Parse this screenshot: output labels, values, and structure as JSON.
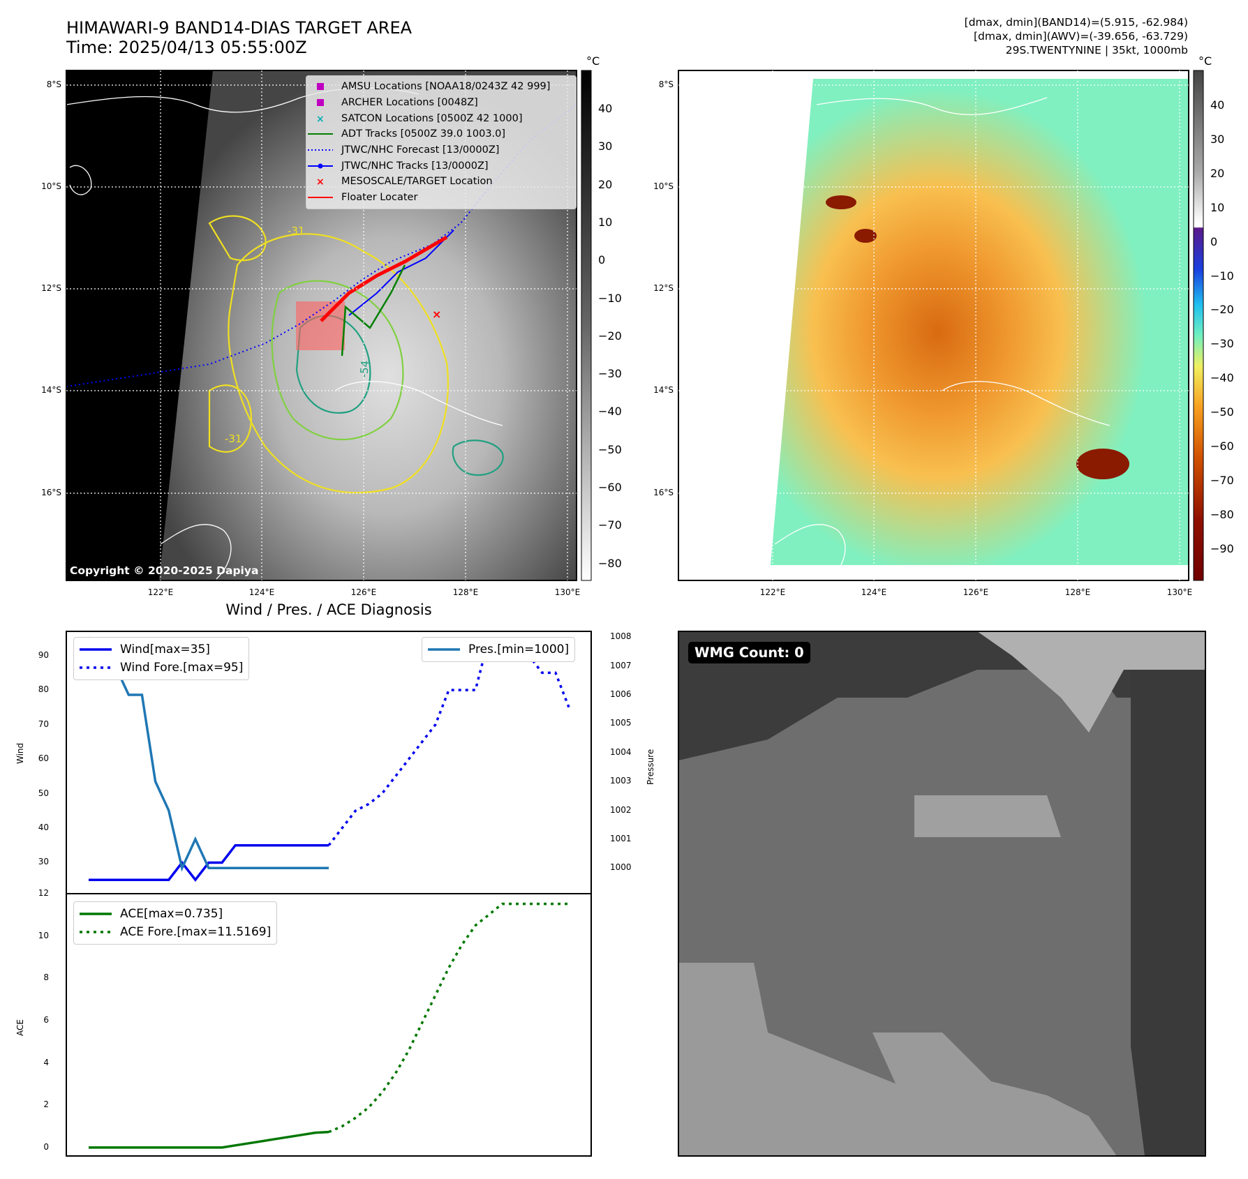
{
  "header": {
    "title_line1": "HIMAWARI-9 BAND14-DIAS TARGET AREA",
    "title_line2": "Time: 2025/04/13 05:55:00Z",
    "stats_line1": "[dmax, dmin](BAND14)=(5.915, -62.984)",
    "stats_line2": "[dmax, dmin](AWV)=(-39.656, -63.729)",
    "stats_line3": "29S.TWENTYNINE | 35kt, 1000mb"
  },
  "map_axes": {
    "lat_labels": [
      "8°S",
      "10°S",
      "12°S",
      "14°S",
      "16°S"
    ],
    "lon_labels": [
      "122°E",
      "124°E",
      "126°E",
      "128°E",
      "130°E"
    ]
  },
  "map_legend": [
    {
      "label": "AMSU Locations [NOAA18/0243Z 42 999]",
      "color": "#c000c0",
      "icon": "square-marker"
    },
    {
      "label": "ARCHER Locations [0048Z]",
      "color": "#c000c0",
      "icon": "square-marker"
    },
    {
      "label": "SATCON Locations [0500Z 42 1000]",
      "color": "#00b0b0",
      "icon": "x-marker"
    },
    {
      "label": "ADT Tracks [0500Z 39.0 1003.0]",
      "color": "#008000",
      "icon": "line"
    },
    {
      "label": "JTWC/NHC Forecast [13/0000Z]",
      "color": "#0000ff",
      "icon": "dotted-line"
    },
    {
      "label": "JTWC/NHC Tracks [13/0000Z]",
      "color": "#0000ff",
      "icon": "line-dot"
    },
    {
      "label": "MESOSCALE/TARGET Location",
      "color": "#ff0000",
      "icon": "x-marker"
    },
    {
      "label": "Floater Locater",
      "color": "#ff0000",
      "icon": "line"
    }
  ],
  "colorbar_gray": {
    "unit": "°C",
    "ticks": [
      "40",
      "30",
      "20",
      "10",
      "0",
      "−10",
      "−20",
      "−30",
      "−40",
      "−50",
      "−60",
      "−70",
      "−80"
    ]
  },
  "colorbar_color": {
    "unit": "°C",
    "ticks": [
      "40",
      "30",
      "20",
      "10",
      "0",
      "−10",
      "−20",
      "−30",
      "−40",
      "−50",
      "−60",
      "−70",
      "−80",
      "−90"
    ]
  },
  "copyright": "Copyright © 2020-2025 Dapiya",
  "contour_labels": [
    "-31",
    "-31",
    "-54"
  ],
  "wmg_label": "WMG Count: 0",
  "diagnosis": {
    "title": "Wind / Pres. / ACE Diagnosis",
    "wind_ylabel": "Wind",
    "pres_ylabel": "Pressure",
    "ace_ylabel": "ACE",
    "wind_ticks": [
      "90",
      "80",
      "70",
      "60",
      "50",
      "40",
      "30"
    ],
    "pres_ticks": [
      "1008",
      "1007",
      "1006",
      "1005",
      "1004",
      "1003",
      "1002",
      "1001",
      "1000"
    ],
    "ace_ticks": [
      "12",
      "10",
      "8",
      "6",
      "4",
      "2",
      "0"
    ],
    "legend_wind": "Wind[max=35]",
    "legend_wind_fore": "Wind Fore.[max=95]",
    "legend_pres": "Pres.[min=1000]",
    "legend_ace": "ACE[max=0.735]",
    "legend_ace_fore": "ACE Fore.[max=11.5169]",
    "colors": {
      "wind": "#0000ee",
      "pres": "#1f77b4",
      "ace": "#007700"
    }
  },
  "chart_data": [
    {
      "type": "line",
      "title": "Wind / Pres. / ACE Diagnosis",
      "ylabel": "Wind",
      "ylim": [
        21,
        97
      ],
      "x": [
        0,
        1,
        2,
        3,
        4,
        5,
        6,
        7,
        8,
        9,
        10,
        11,
        12,
        13,
        14,
        15,
        16,
        17,
        18,
        19,
        20,
        21,
        22,
        23,
        24,
        25,
        26,
        27,
        28,
        29,
        30,
        31,
        32,
        33,
        34,
        35,
        36
      ],
      "series": [
        {
          "name": "Wind[max=35]",
          "x": [
            0,
            1,
            2,
            3,
            4,
            5,
            6,
            7,
            8,
            9,
            10,
            11,
            12,
            13,
            14,
            15,
            16,
            17,
            18
          ],
          "values": [
            25,
            25,
            25,
            25,
            25,
            25,
            25,
            30,
            25,
            30,
            30,
            35,
            35,
            35,
            35,
            35,
            35,
            35,
            35
          ]
        },
        {
          "name": "Wind Fore.[max=95]",
          "x": [
            18,
            19,
            20,
            21,
            22,
            23,
            24,
            25,
            26,
            27,
            28,
            29,
            30,
            31,
            32,
            33,
            34,
            35,
            36
          ],
          "values": [
            35,
            40,
            45,
            47,
            50,
            55,
            60,
            65,
            70,
            80,
            80,
            80,
            95,
            95,
            95,
            90,
            85,
            85,
            75
          ]
        },
        {
          "name": "Pres.[min=1000]",
          "axis": "right",
          "ylim": [
            999.5,
            1008.2
          ],
          "x": [
            0,
            1,
            2,
            3,
            4,
            5,
            6,
            7,
            8,
            9,
            10,
            11,
            12,
            13,
            14,
            15,
            16,
            17,
            18
          ],
          "values": [
            1008,
            1007,
            1007,
            1006,
            1006,
            1003,
            1002,
            1000,
            1001,
            1000,
            1000,
            1000,
            1000,
            1000,
            1000,
            1000,
            1000,
            1000,
            1000
          ]
        }
      ]
    },
    {
      "type": "line",
      "ylabel": "ACE",
      "ylim": [
        -0.4,
        12
      ],
      "series": [
        {
          "name": "ACE[max=0.735]",
          "x": [
            0,
            1,
            2,
            3,
            4,
            5,
            6,
            7,
            8,
            9,
            10,
            11,
            12,
            13,
            14,
            15,
            16,
            17,
            18
          ],
          "values": [
            0,
            0,
            0,
            0,
            0,
            0,
            0,
            0,
            0,
            0,
            0,
            0.1,
            0.2,
            0.3,
            0.4,
            0.5,
            0.6,
            0.7,
            0.735
          ]
        },
        {
          "name": "ACE Fore.[max=11.5169]",
          "x": [
            18,
            19,
            20,
            21,
            22,
            23,
            24,
            25,
            26,
            27,
            28,
            29,
            30,
            31,
            32,
            33,
            34,
            35,
            36
          ],
          "values": [
            0.735,
            1.0,
            1.4,
            1.9,
            2.6,
            3.5,
            4.6,
            5.9,
            7.2,
            8.5,
            9.6,
            10.5,
            11.0,
            11.5169,
            11.5169,
            11.5169,
            11.5169,
            11.5169,
            11.5169
          ]
        }
      ]
    }
  ]
}
